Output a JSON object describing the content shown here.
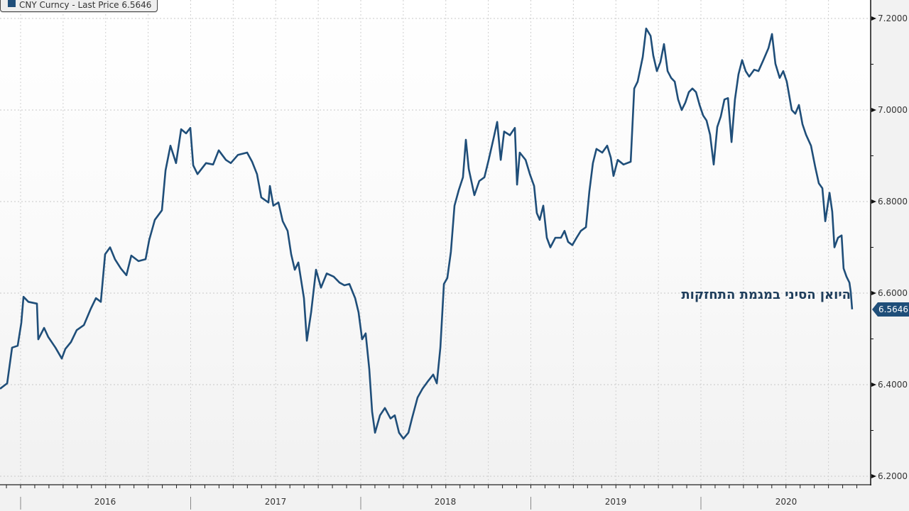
{
  "legend": {
    "text": "CNY Curncy - Last Price 6.5646",
    "color": "#1f4e79"
  },
  "annotation": {
    "text": "היואן הסיני במגמת התחזקות"
  },
  "last_price": {
    "label": "6.5646"
  },
  "y_axis": {
    "ticks": [
      "7.2000",
      "7.0000",
      "6.8000",
      "6.6000",
      "6.4000",
      "6.2000"
    ]
  },
  "x_axis": {
    "years": [
      "2016",
      "2017",
      "2018",
      "2019",
      "2020"
    ]
  },
  "chart_data": {
    "type": "line",
    "title": "CNY Curncy - Last Price 6.5646",
    "xlabel": "",
    "ylabel": "",
    "ylim": [
      6.2,
      7.2
    ],
    "xlim": [
      2015.88,
      2020.93
    ],
    "y_ticks": [
      6.2,
      6.4,
      6.6,
      6.8,
      7.0,
      7.2
    ],
    "x_tick_labels": [
      "2016",
      "2017",
      "2018",
      "2019",
      "2020"
    ],
    "grid": true,
    "legend_position": "top-left",
    "line_color": "#1f4e79",
    "last_value": 6.5646,
    "annotations": [
      {
        "text": "היואן הסיני במגמת התחזקות",
        "x": 2020.6,
        "y": 6.59
      }
    ],
    "series": [
      {
        "name": "CNY Curncy - Last Price",
        "x": [
          2015.879,
          2015.921,
          2015.95,
          2015.983,
          2016.004,
          2016.017,
          2016.046,
          2016.096,
          2016.104,
          2016.138,
          2016.163,
          2016.205,
          2016.242,
          2016.263,
          2016.296,
          2016.33,
          2016.372,
          2016.413,
          2016.443,
          2016.472,
          2016.497,
          2016.526,
          2016.555,
          2016.589,
          2016.622,
          2016.651,
          2016.693,
          2016.735,
          2016.756,
          2016.789,
          2016.831,
          2016.852,
          2016.881,
          2016.914,
          2016.944,
          2016.973,
          2016.998,
          2017.015,
          2017.04,
          2017.09,
          2017.132,
          2017.165,
          2017.207,
          2017.236,
          2017.278,
          2017.332,
          2017.361,
          2017.39,
          2017.415,
          2017.457,
          2017.466,
          2017.486,
          2017.516,
          2017.541,
          2017.57,
          2017.591,
          2017.612,
          2017.633,
          2017.666,
          2017.683,
          2017.708,
          2017.737,
          2017.766,
          2017.8,
          2017.841,
          2017.875,
          2017.904,
          2017.933,
          2017.967,
          2017.987,
          2018.008,
          2018.029,
          2018.05,
          2018.067,
          2018.084,
          2018.113,
          2018.142,
          2018.175,
          2018.2,
          2018.225,
          2018.251,
          2018.28,
          2018.301,
          2018.334,
          2018.363,
          2018.392,
          2018.426,
          2018.447,
          2018.468,
          2018.489,
          2018.509,
          2018.53,
          2018.551,
          2018.576,
          2018.601,
          2018.618,
          2018.635,
          2018.668,
          2018.697,
          2018.727,
          2018.752,
          2018.781,
          2018.802,
          2018.823,
          2018.843,
          2018.877,
          2018.906,
          2018.919,
          2018.935,
          2018.969,
          2018.994,
          2019.019,
          2019.035,
          2019.052,
          2019.073,
          2019.094,
          2019.115,
          2019.144,
          2019.177,
          2019.198,
          2019.219,
          2019.244,
          2019.269,
          2019.294,
          2019.324,
          2019.344,
          2019.365,
          2019.386,
          2019.42,
          2019.449,
          2019.47,
          2019.486,
          2019.511,
          2019.545,
          2019.587,
          2019.608,
          2019.628,
          2019.658,
          2019.678,
          2019.704,
          2019.72,
          2019.741,
          2019.762,
          2019.783,
          2019.804,
          2019.825,
          2019.846,
          2019.866,
          2019.887,
          2019.908,
          2019.929,
          2019.95,
          2019.971,
          2019.992,
          2020.013,
          2020.033,
          2020.054,
          2020.075,
          2020.096,
          2020.117,
          2020.138,
          2020.159,
          2020.18,
          2020.2,
          2020.221,
          2020.242,
          2020.263,
          2020.284,
          2020.313,
          2020.338,
          2020.367,
          2020.397,
          2020.418,
          2020.438,
          2020.463,
          2020.484,
          2020.505,
          2020.534,
          2020.555,
          2020.576,
          2020.597,
          2020.618,
          2020.647,
          2020.672,
          2020.693,
          2020.714,
          2020.731,
          2020.756,
          2020.772,
          2020.785,
          2020.806,
          2020.827,
          2020.839,
          2020.856,
          2020.873,
          2020.881,
          2020.889
        ],
        "values": [
          6.391,
          6.403,
          6.481,
          6.485,
          6.535,
          6.592,
          6.581,
          6.577,
          6.499,
          6.524,
          6.504,
          6.481,
          6.457,
          6.478,
          6.493,
          6.519,
          6.53,
          6.566,
          6.589,
          6.581,
          6.685,
          6.7,
          6.674,
          6.654,
          6.639,
          6.682,
          6.67,
          6.674,
          6.716,
          6.76,
          6.781,
          6.868,
          6.922,
          6.884,
          6.958,
          6.949,
          6.961,
          6.879,
          6.86,
          6.884,
          6.881,
          6.912,
          6.891,
          6.884,
          6.902,
          6.907,
          6.887,
          6.86,
          6.809,
          6.798,
          6.834,
          6.791,
          6.798,
          6.757,
          6.736,
          6.685,
          6.651,
          6.667,
          6.589,
          6.496,
          6.558,
          6.651,
          6.612,
          6.643,
          6.636,
          6.623,
          6.617,
          6.62,
          6.589,
          6.558,
          6.499,
          6.512,
          6.434,
          6.341,
          6.295,
          6.333,
          6.349,
          6.326,
          6.333,
          6.295,
          6.282,
          6.295,
          6.326,
          6.372,
          6.391,
          6.406,
          6.422,
          6.403,
          6.481,
          6.62,
          6.633,
          6.69,
          6.791,
          6.825,
          6.853,
          6.935,
          6.871,
          6.814,
          6.845,
          6.853,
          6.891,
          6.938,
          6.974,
          6.891,
          6.953,
          6.945,
          6.961,
          6.837,
          6.907,
          6.891,
          6.86,
          6.834,
          6.775,
          6.76,
          6.791,
          6.721,
          6.7,
          6.721,
          6.721,
          6.736,
          6.712,
          6.705,
          6.721,
          6.736,
          6.744,
          6.822,
          6.884,
          6.915,
          6.907,
          6.922,
          6.896,
          6.856,
          6.891,
          6.881,
          6.887,
          7.047,
          7.062,
          7.116,
          7.178,
          7.162,
          7.119,
          7.085,
          7.105,
          7.144,
          7.085,
          7.07,
          7.062,
          7.023,
          7.0,
          7.016,
          7.039,
          7.047,
          7.039,
          7.011,
          6.988,
          6.977,
          6.946,
          6.881,
          6.963,
          6.986,
          7.023,
          7.026,
          6.93,
          7.023,
          7.078,
          7.109,
          7.085,
          7.073,
          7.088,
          7.085,
          7.109,
          7.135,
          7.166,
          7.101,
          7.07,
          7.085,
          7.062,
          7.0,
          6.992,
          7.011,
          6.969,
          6.946,
          6.922,
          6.876,
          6.84,
          6.829,
          6.757,
          6.819,
          6.778,
          6.7,
          6.721,
          6.726,
          6.654,
          6.636,
          6.623,
          6.602,
          6.5646
        ]
      }
    ]
  }
}
